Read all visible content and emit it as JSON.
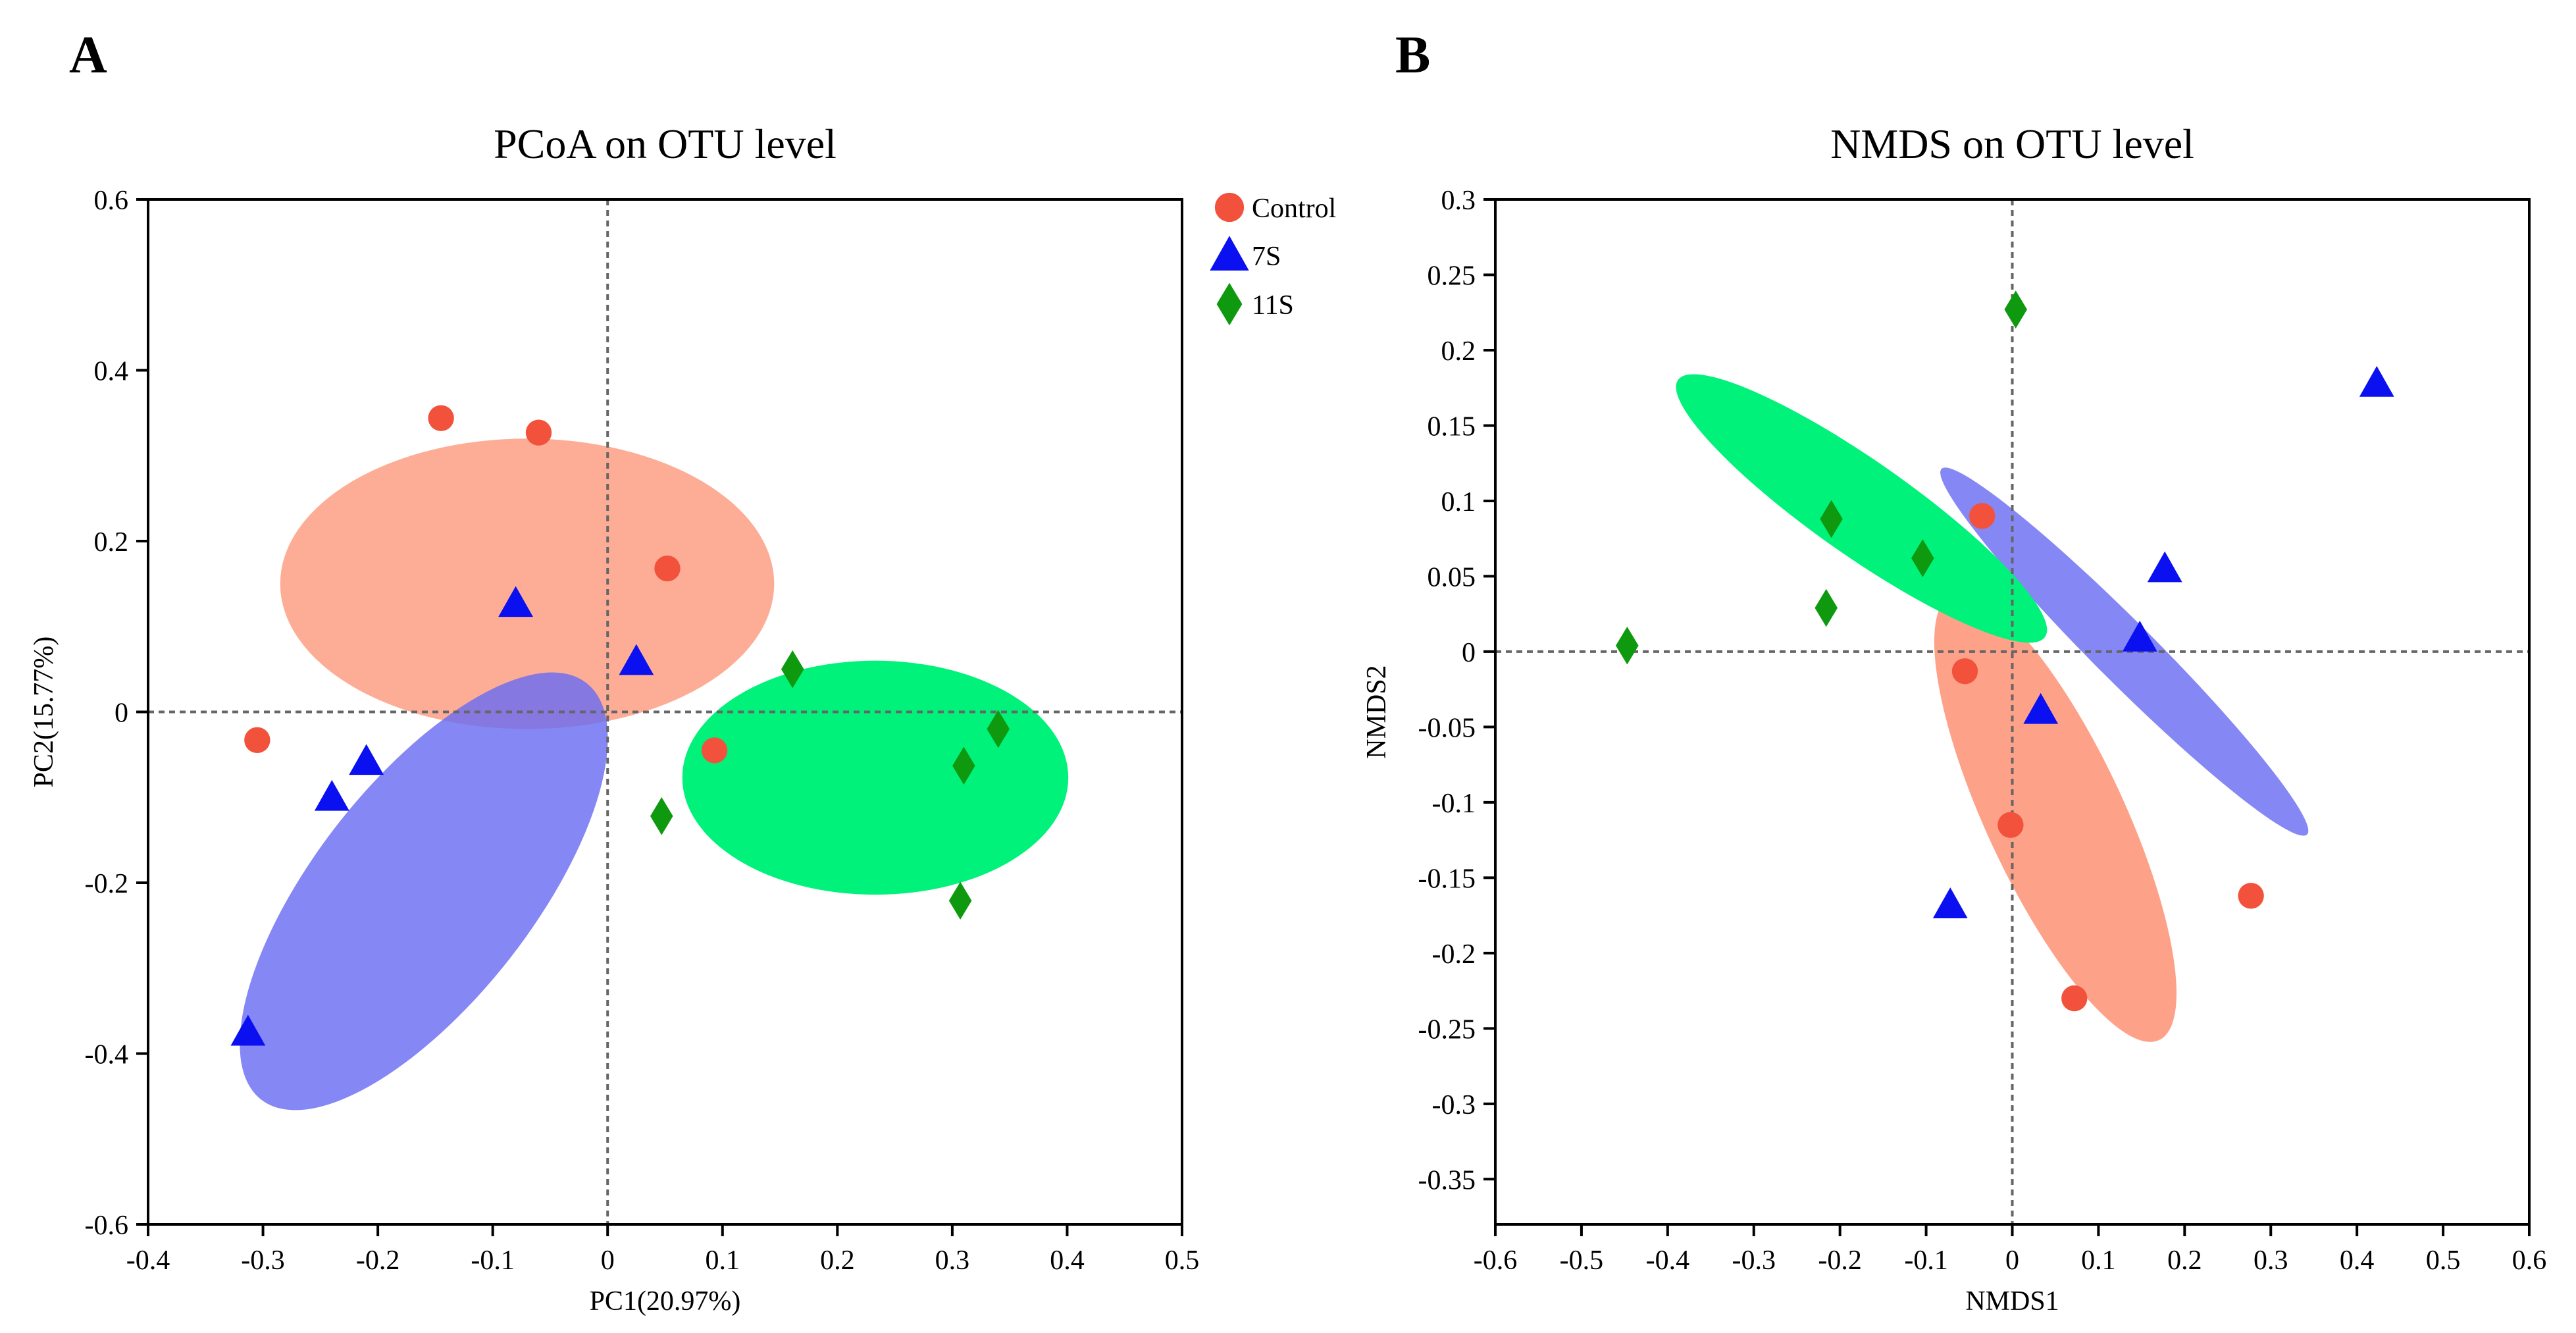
{
  "chart_data": [
    {
      "panel_label": "A",
      "type": "scatter",
      "title": "PCoA on OTU level",
      "xlabel": "PC1(20.97%)",
      "ylabel": "PC2(15.77%)",
      "xlim": [
        -0.4,
        0.5
      ],
      "ylim": [
        -0.6,
        0.6
      ],
      "xticks": [
        -0.4,
        -0.3,
        -0.2,
        -0.1,
        0,
        0.1,
        0.2,
        0.3,
        0.4,
        0.5
      ],
      "xtick_labels": [
        "-0.4",
        "-0.3",
        "-0.2",
        "-0.1",
        "0",
        "0.1",
        "0.2",
        "0.3",
        "0.4",
        "0.5"
      ],
      "yticks": [
        -0.6,
        -0.4,
        -0.2,
        0,
        0.2,
        0.4,
        0.6
      ],
      "ytick_labels": [
        "-0.6",
        "-0.4",
        "-0.2",
        "0",
        "0.2",
        "0.4",
        "0.6"
      ],
      "reference_lines": {
        "x": 0,
        "y": 0
      },
      "legend": {
        "position": "outside-top-right"
      },
      "series": [
        {
          "name": "Control",
          "marker": "circle",
          "color": "#f2523c",
          "points": [
            [
              -0.145,
              0.344
            ],
            [
              -0.06,
              0.327
            ],
            [
              0.052,
              0.168
            ],
            [
              -0.305,
              -0.033
            ],
            [
              0.093,
              -0.045
            ]
          ],
          "ellipse": {
            "center": [
              -0.07,
              0.15
            ],
            "radii": [
              0.215,
              0.17
            ],
            "angle_deg": 0,
            "color": "#fc8d6e",
            "opacity": 0.72
          }
        },
        {
          "name": "7S",
          "marker": "triangle",
          "color": "#0a10f0",
          "points": [
            [
              -0.08,
              0.127
            ],
            [
              0.025,
              0.059
            ],
            [
              -0.21,
              -0.058
            ],
            [
              -0.24,
              -0.1
            ],
            [
              -0.313,
              -0.375
            ]
          ],
          "ellipse": {
            "center": [
              -0.16,
              -0.21
            ],
            "radii": [
              0.23,
              0.095
            ],
            "angle_deg": 52,
            "color": "#6a6cf2",
            "opacity": 0.82
          }
        },
        {
          "name": "11S",
          "marker": "diamond",
          "color": "#0e990e",
          "points": [
            [
              0.161,
              0.05
            ],
            [
              0.34,
              -0.02
            ],
            [
              0.31,
              -0.063
            ],
            [
              0.047,
              -0.122
            ],
            [
              0.307,
              -0.221
            ]
          ],
          "ellipse": {
            "center": [
              0.233,
              -0.077
            ],
            "radii": [
              0.168,
              0.137
            ],
            "angle_deg": 0,
            "color": "#00f27a",
            "opacity": 1.0
          }
        }
      ]
    },
    {
      "panel_label": "B",
      "type": "scatter",
      "title": "NMDS on OTU level",
      "xlabel": "NMDS1",
      "ylabel": "NMDS2",
      "xlim": [
        -0.6,
        0.6
      ],
      "ylim": [
        -0.38,
        0.3
      ],
      "xticks": [
        -0.6,
        -0.5,
        -0.4,
        -0.3,
        -0.2,
        -0.1,
        0,
        0.1,
        0.2,
        0.3,
        0.4,
        0.5,
        0.6
      ],
      "xtick_labels": [
        "-0.6",
        "-0.5",
        "-0.4",
        "-0.3",
        "-0.2",
        "-0.1",
        "0",
        "0.1",
        "0.2",
        "0.3",
        "0.4",
        "0.5",
        "0.6"
      ],
      "yticks": [
        0.3,
        0.25,
        0.2,
        0.15,
        0.1,
        0.05,
        0,
        -0.05,
        -0.1,
        -0.15,
        -0.2,
        -0.25,
        -0.3,
        -0.35
      ],
      "ytick_labels": [
        "0.3",
        "0.25",
        "0.2",
        "0.15",
        "0.1",
        "0.05",
        "0",
        "-0.05",
        "-0.1",
        "-0.15",
        "-0.2",
        "-0.25",
        "-0.3",
        "-0.35"
      ],
      "reference_lines": {
        "x": 0,
        "y": 0
      },
      "series": [
        {
          "name": "Control",
          "marker": "circle",
          "color": "#f2523c",
          "points": [
            [
              -0.035,
              0.09
            ],
            [
              -0.055,
              -0.013
            ],
            [
              -0.002,
              -0.115
            ],
            [
              0.277,
              -0.162
            ],
            [
              0.072,
              -0.23
            ]
          ],
          "ellipse": {
            "center": [
              0.05,
              -0.11
            ],
            "radii": [
              0.285,
              0.08
            ],
            "angle_deg": -65,
            "color": "#fc8d6e",
            "opacity": 0.82
          }
        },
        {
          "name": "7S",
          "marker": "triangle",
          "color": "#0a10f0",
          "points": [
            [
              0.423,
              0.178
            ],
            [
              0.177,
              0.055
            ],
            [
              0.148,
              0.009
            ],
            [
              0.033,
              -0.039
            ],
            [
              -0.072,
              -0.168
            ]
          ],
          "ellipse": {
            "center": [
              0.13,
              0.0
            ],
            "radii": [
              0.3,
              0.035
            ],
            "angle_deg": -45,
            "color": "#6a6cf2",
            "opacity": 0.82
          }
        },
        {
          "name": "11S",
          "marker": "diamond",
          "color": "#0e990e",
          "points": [
            [
              0.004,
              0.227
            ],
            [
              -0.21,
              0.088
            ],
            [
              -0.104,
              0.062
            ],
            [
              -0.216,
              0.029
            ],
            [
              -0.447,
              0.004
            ]
          ],
          "ellipse": {
            "center": [
              -0.175,
              0.095
            ],
            "radii": [
              0.26,
              0.055
            ],
            "angle_deg": -35,
            "color": "#00f27a",
            "opacity": 1.0
          }
        }
      ]
    }
  ]
}
